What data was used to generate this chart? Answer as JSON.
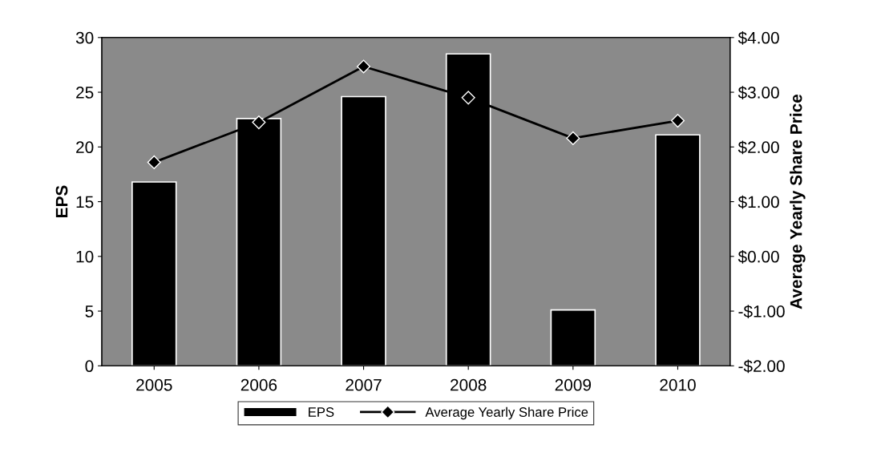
{
  "chart_data": {
    "type": "bar",
    "categories": [
      "2005",
      "2006",
      "2007",
      "2008",
      "2009",
      "2010"
    ],
    "ylabel": "EPS",
    "y2label": "Average Yearly Share Price",
    "series": [
      {
        "name": "EPS",
        "color": "#000000",
        "values": [
          16.8,
          22.6,
          24.6,
          28.5,
          5.1,
          21.1
        ]
      },
      {
        "name": "Average Yearly Share Price",
        "type": "line",
        "axis": "y2",
        "color": "#000000",
        "marker": "diamond",
        "values": [
          1.72,
          2.45,
          3.47,
          2.9,
          2.16,
          2.48
        ]
      }
    ],
    "ylim": [
      0,
      30
    ],
    "yticks": [
      0,
      5,
      10,
      15,
      20,
      25,
      30
    ],
    "y2lim": [
      -2,
      4
    ],
    "y2ticks": [
      {
        "value": -2,
        "label": "-$2.00"
      },
      {
        "value": -1,
        "label": "-$1.00"
      },
      {
        "value": 0,
        "label": "$0.00"
      },
      {
        "value": 1,
        "label": "$1.00"
      },
      {
        "value": 2,
        "label": "$2.00"
      },
      {
        "value": 3,
        "label": "$3.00"
      },
      {
        "value": 4,
        "label": "$4.00"
      }
    ],
    "grid": false,
    "legend": "bottom"
  }
}
